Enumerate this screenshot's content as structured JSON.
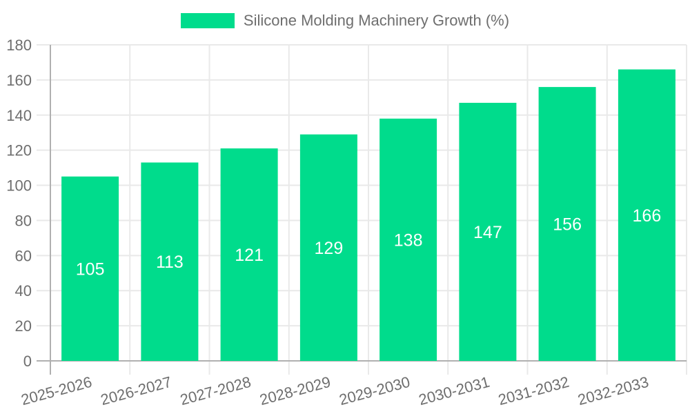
{
  "legend": {
    "label": "Silicone Molding Machinery Growth (%)",
    "marker_color": "#00DC8C",
    "text_color": "#6e6e6e"
  },
  "chart_data": {
    "type": "bar",
    "title": "Silicone Molding Machinery Growth (%)",
    "series_name": "Silicone Molding Machinery Growth (%)",
    "categories": [
      "2025-2026",
      "2026-2027",
      "2027-2028",
      "2028-2029",
      "2029-2030",
      "2030-2031",
      "2031-2032",
      "2032-2033"
    ],
    "values": [
      105,
      113,
      121,
      129,
      138,
      147,
      156,
      166
    ],
    "xlabel": "",
    "ylabel": "",
    "ylim": [
      0,
      180
    ],
    "yticks": [
      0,
      20,
      40,
      60,
      80,
      100,
      120,
      140,
      160,
      180
    ],
    "grid": "on",
    "legend_position": "top",
    "x_label_rotation_deg": -15,
    "bar_color": "#00DC8C",
    "data_label_color": "#ffffff",
    "axis_text_color": "#6e6e6e",
    "grid_color": "#e9e9e9",
    "axis_line_color": "#b0b0b0"
  }
}
